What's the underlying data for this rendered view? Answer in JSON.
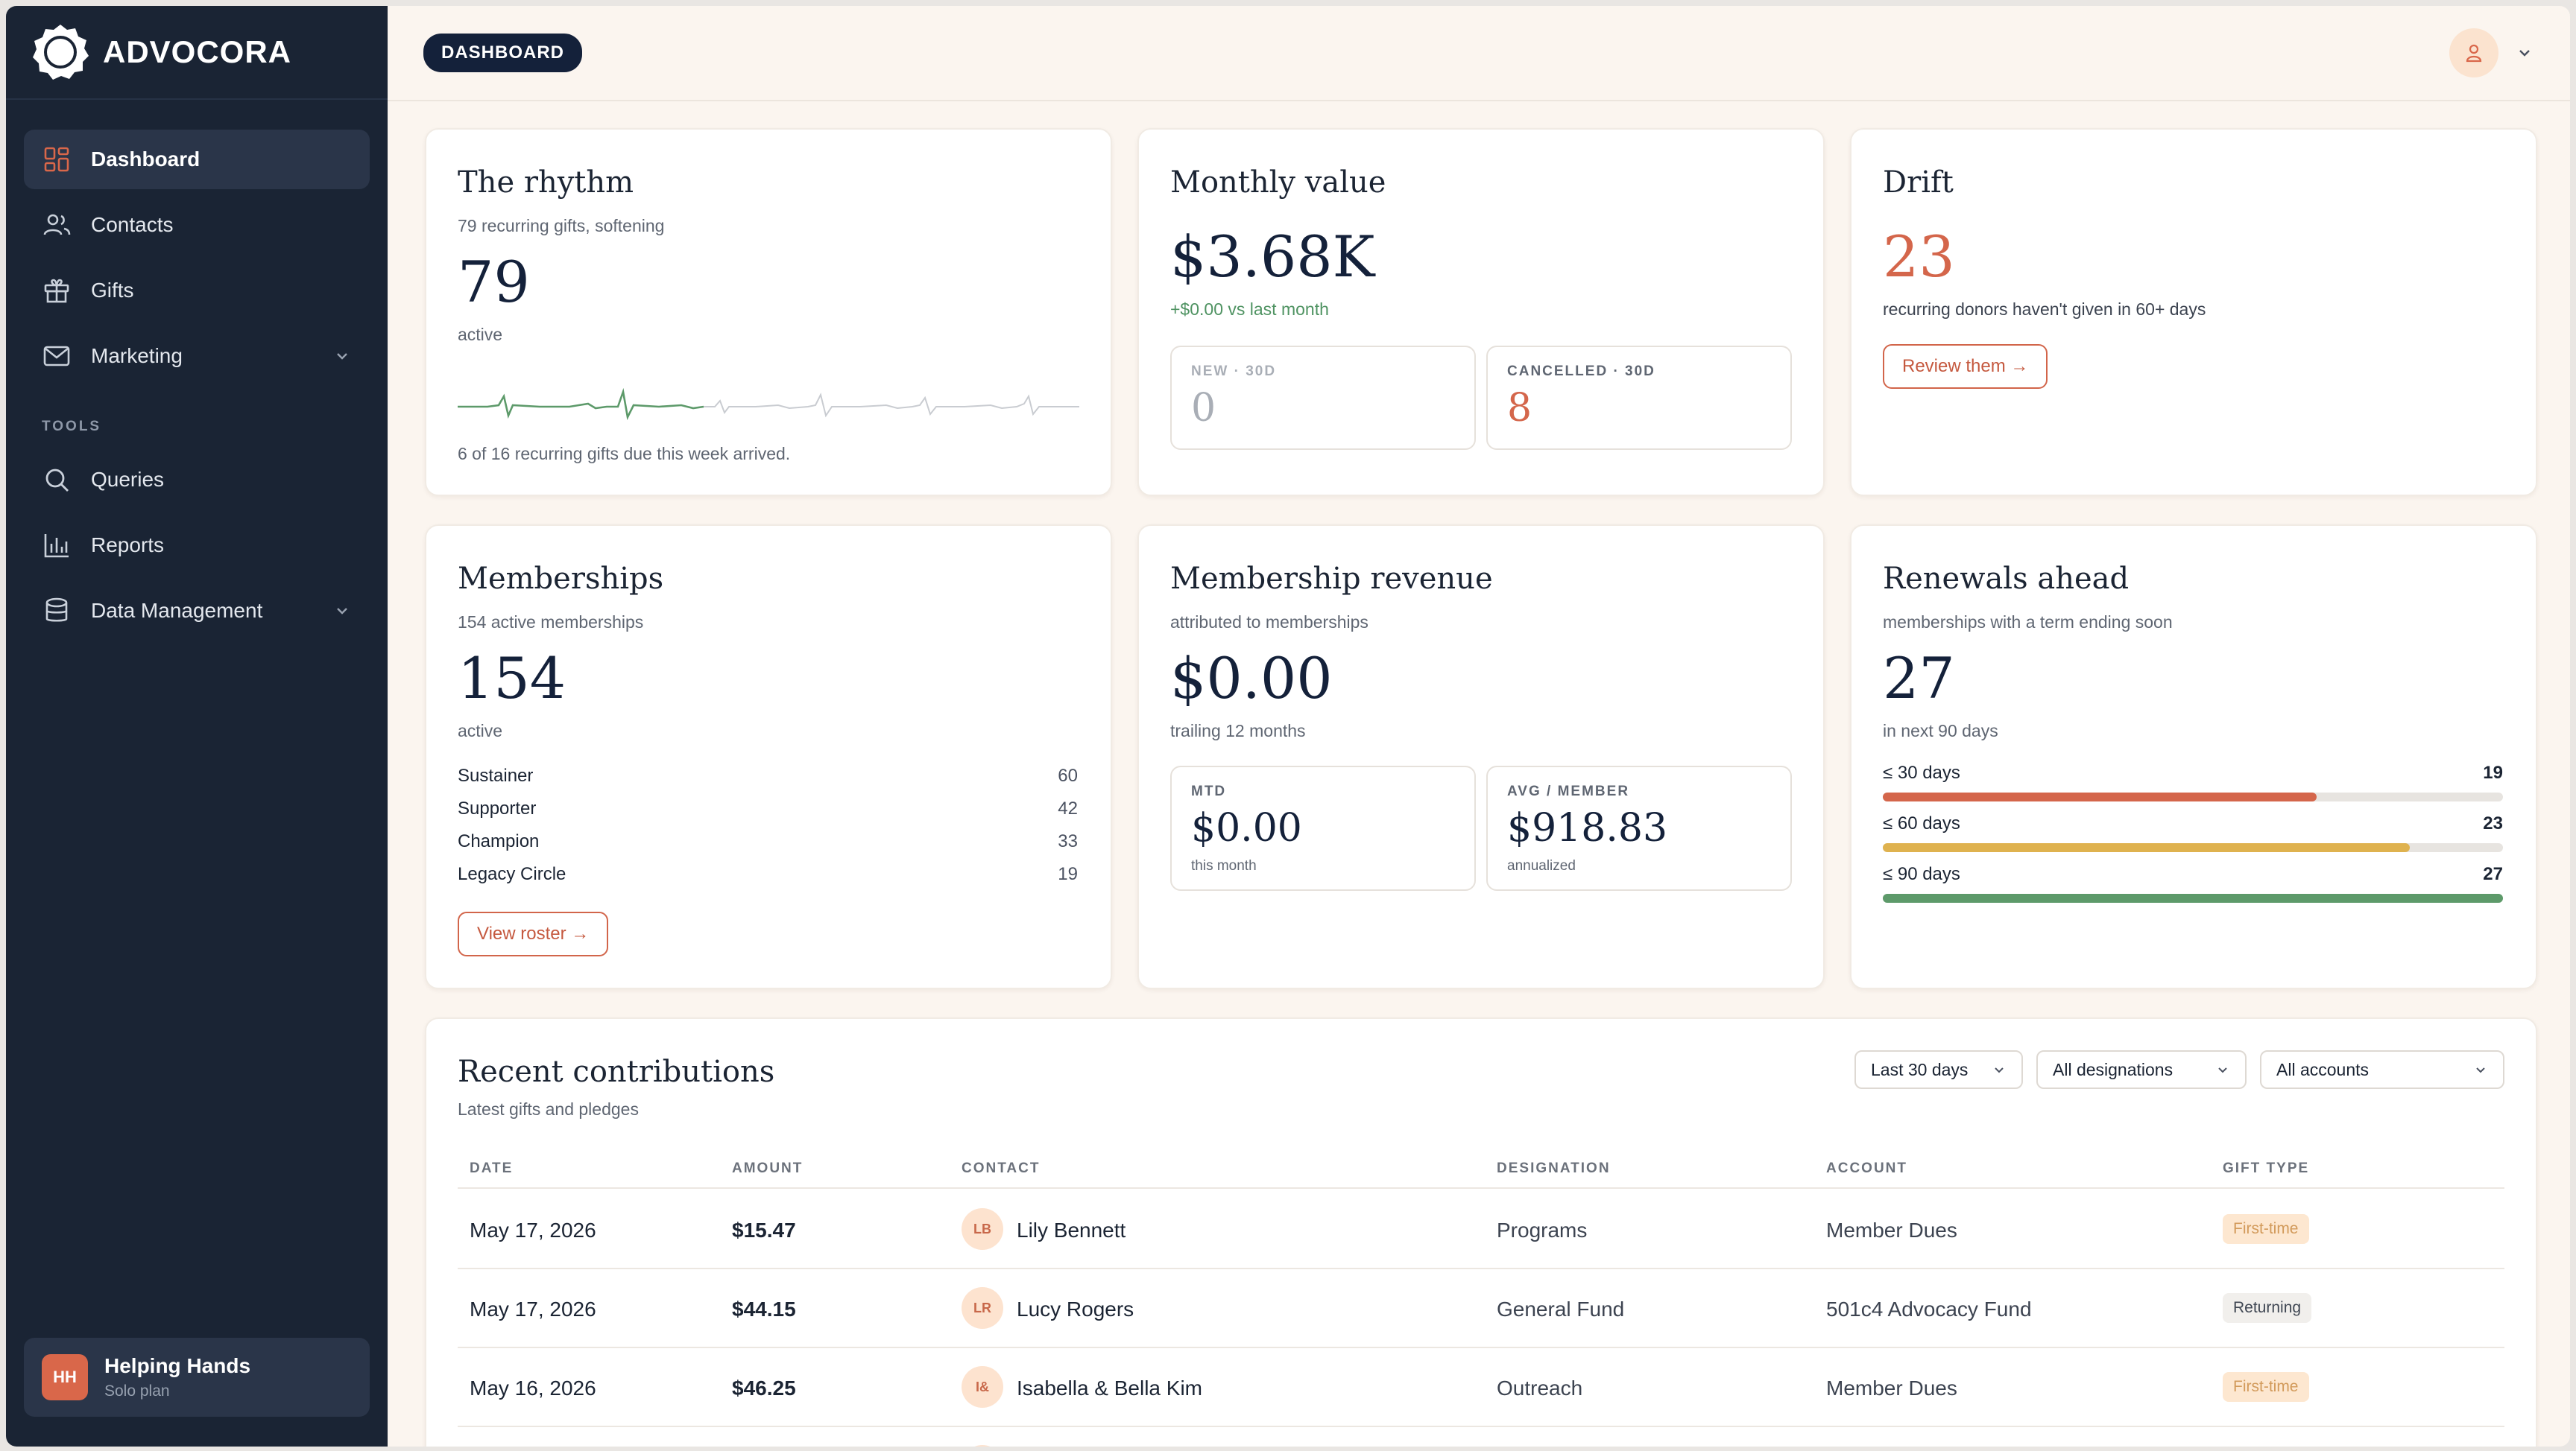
{
  "app": {
    "name": "ADVOCORA"
  },
  "sidebar": {
    "items": [
      {
        "label": "Dashboard"
      },
      {
        "label": "Contacts"
      },
      {
        "label": "Gifts"
      },
      {
        "label": "Marketing"
      }
    ],
    "tools_heading": "TOOLS",
    "tools": [
      {
        "label": "Queries"
      },
      {
        "label": "Reports"
      },
      {
        "label": "Data Management"
      }
    ],
    "org": {
      "initials": "HH",
      "name": "Helping Hands",
      "plan": "Solo plan"
    }
  },
  "topbar": {
    "breadcrumb": "DASHBOARD"
  },
  "rhythm": {
    "title": "The rhythm",
    "subtitle": "79 recurring gifts, softening",
    "value": "79",
    "value_label": "active",
    "footer": "6 of 16 recurring gifts due this week arrived."
  },
  "monthly": {
    "title": "Monthly value",
    "value": "$3.68K",
    "delta": "+$0.00 vs last month",
    "new_label": "NEW · 30D",
    "new_value": "0",
    "cancelled_label": "CANCELLED · 30D",
    "cancelled_value": "8"
  },
  "drift": {
    "title": "Drift",
    "value": "23",
    "description": "recurring donors haven't given in 60+ days",
    "button": "Review them →"
  },
  "memberships": {
    "title": "Memberships",
    "subtitle": "154 active memberships",
    "value": "154",
    "value_label": "active",
    "tiers": [
      {
        "name": "Sustainer",
        "count": "60"
      },
      {
        "name": "Supporter",
        "count": "42"
      },
      {
        "name": "Champion",
        "count": "33"
      },
      {
        "name": "Legacy Circle",
        "count": "19"
      }
    ],
    "button": "View roster →"
  },
  "revenue": {
    "title": "Membership revenue",
    "subtitle": "attributed to memberships",
    "value": "$0.00",
    "value_label": "trailing 12 months",
    "mtd_label": "MTD",
    "mtd_value": "$0.00",
    "mtd_note": "this month",
    "avg_label": "AVG / MEMBER",
    "avg_value": "$918.83",
    "avg_note": "annualized"
  },
  "renewals": {
    "title": "Renewals ahead",
    "subtitle": "memberships with a term ending soon",
    "value": "27",
    "value_label": "in next 90 days",
    "rows": [
      {
        "label": "≤ 30 days",
        "count": "19",
        "fraction": 0.7,
        "color": "#d4664b"
      },
      {
        "label": "≤ 60 days",
        "count": "23",
        "fraction": 0.85,
        "color": "#dfb24f"
      },
      {
        "label": "≤ 90 days",
        "count": "27",
        "fraction": 1.0,
        "color": "#5d9a6a"
      }
    ]
  },
  "contributions": {
    "title": "Recent contributions",
    "subtitle": "Latest gifts and pledges",
    "filters": [
      "Last 30 days",
      "All designations",
      "All accounts"
    ],
    "columns": [
      "DATE",
      "AMOUNT",
      "CONTACT",
      "DESIGNATION",
      "ACCOUNT",
      "GIFT TYPE"
    ],
    "rows": [
      {
        "date": "May 17, 2026",
        "amount": "$15.47",
        "initials": "LB",
        "contact": "Lily Bennett",
        "designation": "Programs",
        "account": "Member Dues",
        "type": "First-time"
      },
      {
        "date": "May 17, 2026",
        "amount": "$44.15",
        "initials": "LR",
        "contact": "Lucy Rogers",
        "designation": "General Fund",
        "account": "501c4 Advocacy Fund",
        "type": "Returning"
      },
      {
        "date": "May 16, 2026",
        "amount": "$46.25",
        "initials": "I&",
        "contact": "Isabella & Bella Kim",
        "designation": "Outreach",
        "account": "Member Dues",
        "type": "First-time"
      }
    ]
  },
  "colors": {
    "sidebar": "#1a2434",
    "accent": "#d4664b",
    "positive": "#5d9a6a",
    "warning": "#dfb24f",
    "background": "#fbf5ef"
  }
}
